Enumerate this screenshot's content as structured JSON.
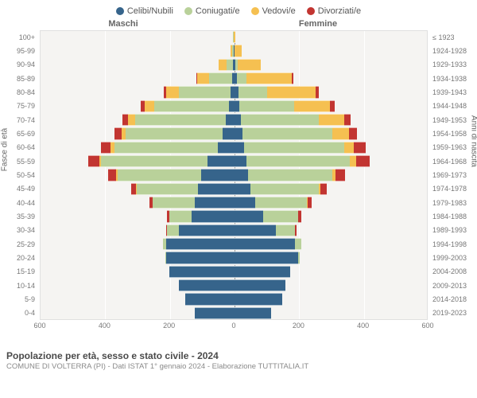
{
  "legend": {
    "items": [
      {
        "label": "Celibi/Nubili",
        "color": "#36648b"
      },
      {
        "label": "Coniugati/e",
        "color": "#b9d19a"
      },
      {
        "label": "Vedovi/e",
        "color": "#f5c051"
      },
      {
        "label": "Divorziati/e",
        "color": "#c23531"
      }
    ]
  },
  "headers": {
    "male": "Maschi",
    "female": "Femmine"
  },
  "axis": {
    "left_title": "Fasce di età",
    "right_title": "Anni di nascita",
    "x_ticks": [
      600,
      400,
      200,
      0,
      200,
      400,
      600
    ],
    "x_max": 600
  },
  "colors": {
    "single": "#36648b",
    "married": "#b9d19a",
    "widowed": "#f5c051",
    "divorced": "#c23531",
    "plot_bg": "#f5f4f2",
    "grid": "#ffffff"
  },
  "age_groups": [
    {
      "age": "100+",
      "birth": "≤ 1923",
      "m": {
        "s": 0,
        "c": 2,
        "v": 1,
        "d": 0
      },
      "f": {
        "s": 0,
        "c": 0,
        "v": 5,
        "d": 0
      }
    },
    {
      "age": "95-99",
      "birth": "1924-1928",
      "m": {
        "s": 1,
        "c": 4,
        "v": 6,
        "d": 0
      },
      "f": {
        "s": 2,
        "c": 0,
        "v": 22,
        "d": 0
      }
    },
    {
      "age": "90-94",
      "birth": "1929-1933",
      "m": {
        "s": 3,
        "c": 20,
        "v": 24,
        "d": 0
      },
      "f": {
        "s": 6,
        "c": 6,
        "v": 72,
        "d": 0
      }
    },
    {
      "age": "85-89",
      "birth": "1934-1938",
      "m": {
        "s": 6,
        "c": 70,
        "v": 38,
        "d": 2
      },
      "f": {
        "s": 10,
        "c": 30,
        "v": 140,
        "d": 4
      }
    },
    {
      "age": "80-84",
      "birth": "1939-1943",
      "m": {
        "s": 10,
        "c": 160,
        "v": 40,
        "d": 6
      },
      "f": {
        "s": 14,
        "c": 90,
        "v": 150,
        "d": 8
      }
    },
    {
      "age": "75-79",
      "birth": "1944-1948",
      "m": {
        "s": 16,
        "c": 230,
        "v": 30,
        "d": 12
      },
      "f": {
        "s": 18,
        "c": 170,
        "v": 110,
        "d": 14
      }
    },
    {
      "age": "70-74",
      "birth": "1949-1953",
      "m": {
        "s": 24,
        "c": 280,
        "v": 22,
        "d": 18
      },
      "f": {
        "s": 22,
        "c": 240,
        "v": 80,
        "d": 20
      }
    },
    {
      "age": "65-69",
      "birth": "1954-1958",
      "m": {
        "s": 34,
        "c": 300,
        "v": 14,
        "d": 22
      },
      "f": {
        "s": 26,
        "c": 280,
        "v": 50,
        "d": 24
      }
    },
    {
      "age": "60-64",
      "birth": "1959-1963",
      "m": {
        "s": 50,
        "c": 320,
        "v": 10,
        "d": 30
      },
      "f": {
        "s": 32,
        "c": 310,
        "v": 30,
        "d": 36
      }
    },
    {
      "age": "55-59",
      "birth": "1964-1968",
      "m": {
        "s": 80,
        "c": 330,
        "v": 6,
        "d": 34
      },
      "f": {
        "s": 40,
        "c": 320,
        "v": 18,
        "d": 42
      }
    },
    {
      "age": "50-54",
      "birth": "1969-1973",
      "m": {
        "s": 100,
        "c": 260,
        "v": 4,
        "d": 24
      },
      "f": {
        "s": 44,
        "c": 260,
        "v": 10,
        "d": 30
      }
    },
    {
      "age": "45-49",
      "birth": "1974-1978",
      "m": {
        "s": 110,
        "c": 190,
        "v": 2,
        "d": 16
      },
      "f": {
        "s": 52,
        "c": 210,
        "v": 6,
        "d": 20
      }
    },
    {
      "age": "40-44",
      "birth": "1979-1983",
      "m": {
        "s": 120,
        "c": 130,
        "v": 0,
        "d": 10
      },
      "f": {
        "s": 66,
        "c": 160,
        "v": 2,
        "d": 14
      }
    },
    {
      "age": "35-39",
      "birth": "1984-1988",
      "m": {
        "s": 130,
        "c": 70,
        "v": 0,
        "d": 6
      },
      "f": {
        "s": 90,
        "c": 110,
        "v": 0,
        "d": 8
      }
    },
    {
      "age": "30-34",
      "birth": "1989-1993",
      "m": {
        "s": 170,
        "c": 36,
        "v": 0,
        "d": 2
      },
      "f": {
        "s": 130,
        "c": 60,
        "v": 0,
        "d": 4
      }
    },
    {
      "age": "25-29",
      "birth": "1994-1998",
      "m": {
        "s": 210,
        "c": 10,
        "v": 0,
        "d": 0
      },
      "f": {
        "s": 190,
        "c": 20,
        "v": 0,
        "d": 0
      }
    },
    {
      "age": "20-24",
      "birth": "1999-2003",
      "m": {
        "s": 210,
        "c": 2,
        "v": 0,
        "d": 0
      },
      "f": {
        "s": 200,
        "c": 4,
        "v": 0,
        "d": 0
      }
    },
    {
      "age": "15-19",
      "birth": "2004-2008",
      "m": {
        "s": 200,
        "c": 0,
        "v": 0,
        "d": 0
      },
      "f": {
        "s": 174,
        "c": 0,
        "v": 0,
        "d": 0
      }
    },
    {
      "age": "10-14",
      "birth": "2009-2013",
      "m": {
        "s": 170,
        "c": 0,
        "v": 0,
        "d": 0
      },
      "f": {
        "s": 160,
        "c": 0,
        "v": 0,
        "d": 0
      }
    },
    {
      "age": "5-9",
      "birth": "2014-2018",
      "m": {
        "s": 150,
        "c": 0,
        "v": 0,
        "d": 0
      },
      "f": {
        "s": 150,
        "c": 0,
        "v": 0,
        "d": 0
      }
    },
    {
      "age": "0-4",
      "birth": "2019-2023",
      "m": {
        "s": 120,
        "c": 0,
        "v": 0,
        "d": 0
      },
      "f": {
        "s": 116,
        "c": 0,
        "v": 0,
        "d": 0
      }
    }
  ],
  "footer": {
    "title": "Popolazione per età, sesso e stato civile - 2024",
    "sub": "COMUNE DI VOLTERRA (PI) - Dati ISTAT 1° gennaio 2024 - Elaborazione TUTTITALIA.IT"
  }
}
